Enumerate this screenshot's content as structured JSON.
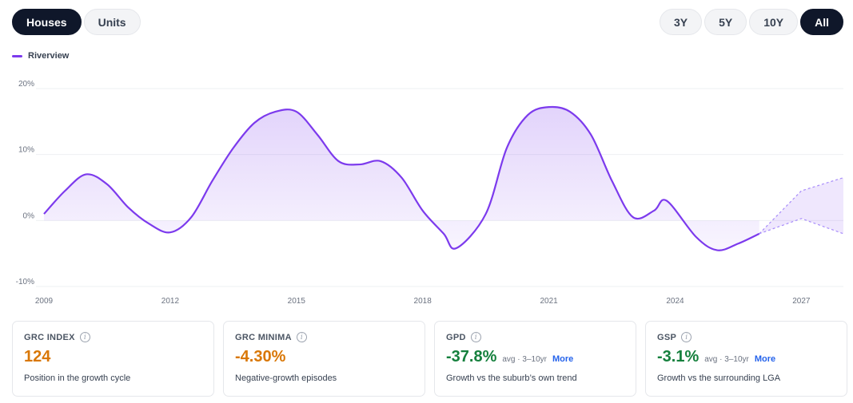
{
  "toggles": {
    "property_types": [
      {
        "label": "Houses",
        "active": true
      },
      {
        "label": "Units",
        "active": false
      }
    ],
    "ranges": [
      {
        "label": "3Y",
        "active": false
      },
      {
        "label": "5Y",
        "active": false
      },
      {
        "label": "10Y",
        "active": false
      },
      {
        "label": "All",
        "active": true
      }
    ]
  },
  "legend": {
    "label": "Riverview",
    "color": "#7c3aed"
  },
  "chart_data": {
    "type": "area",
    "series": [
      {
        "name": "Riverview",
        "color": "#7c3aed",
        "points": [
          [
            2009.0,
            1.0
          ],
          [
            2009.5,
            4.5
          ],
          [
            2010.0,
            7.0
          ],
          [
            2010.5,
            5.5
          ],
          [
            2011.0,
            2.0
          ],
          [
            2011.5,
            -0.5
          ],
          [
            2012.0,
            -1.8
          ],
          [
            2012.5,
            0.5
          ],
          [
            2013.0,
            6.0
          ],
          [
            2013.5,
            11.0
          ],
          [
            2014.0,
            14.8
          ],
          [
            2014.5,
            16.5
          ],
          [
            2015.0,
            16.5
          ],
          [
            2015.5,
            13.0
          ],
          [
            2016.0,
            9.0
          ],
          [
            2016.5,
            8.5
          ],
          [
            2017.0,
            9.0
          ],
          [
            2017.5,
            6.5
          ],
          [
            2018.0,
            1.5
          ],
          [
            2018.5,
            -2.0
          ],
          [
            2018.8,
            -4.2
          ],
          [
            2019.5,
            1.0
          ],
          [
            2020.0,
            11.0
          ],
          [
            2020.5,
            16.0
          ],
          [
            2021.0,
            17.2
          ],
          [
            2021.5,
            16.5
          ],
          [
            2022.0,
            13.0
          ],
          [
            2022.5,
            6.0
          ],
          [
            2023.0,
            0.5
          ],
          [
            2023.5,
            1.5
          ],
          [
            2023.8,
            3.0
          ],
          [
            2024.5,
            -2.5
          ],
          [
            2025.0,
            -4.5
          ],
          [
            2025.5,
            -3.5
          ],
          [
            2026.0,
            -2.0
          ]
        ]
      }
    ],
    "forecast": {
      "start": 2026.0,
      "upper": [
        [
          2026.0,
          -2.0
        ],
        [
          2027.0,
          4.5
        ],
        [
          2028.0,
          6.5
        ]
      ],
      "mid": [
        [
          2026.0,
          -2.0
        ],
        [
          2027.0,
          0.3
        ],
        [
          2028.0,
          -2.0
        ]
      ]
    },
    "x_ticks": [
      "2009",
      "2012",
      "2015",
      "2018",
      "2021",
      "2024",
      "2027"
    ],
    "x_tick_values": [
      2009,
      2012,
      2015,
      2018,
      2021,
      2024,
      2027
    ],
    "y_ticks": [
      "20%",
      "10%",
      "0%",
      "-10%"
    ],
    "y_tick_values": [
      20,
      10,
      0,
      -10
    ],
    "xlim": [
      2009,
      2028
    ],
    "ylim": [
      -10,
      20
    ],
    "grid": true,
    "legend_position": "top-left"
  },
  "cards": [
    {
      "title": "GRC INDEX",
      "value": "124",
      "value_color": "orange",
      "meta": "",
      "more": "",
      "description": "Position in the growth cycle"
    },
    {
      "title": "GRC MINIMA",
      "value": "-4.30%",
      "value_color": "orange",
      "meta": "",
      "more": "",
      "description": "Negative-growth episodes"
    },
    {
      "title": "GPD",
      "value": "-37.8%",
      "value_color": "green",
      "meta": "avg · 3–10yr",
      "more": "More",
      "description": "Growth vs the suburb’s own trend"
    },
    {
      "title": "GSP",
      "value": "-3.1%",
      "value_color": "green",
      "meta": "avg · 3–10yr",
      "more": "More",
      "description": "Growth vs the surrounding LGA"
    }
  ]
}
